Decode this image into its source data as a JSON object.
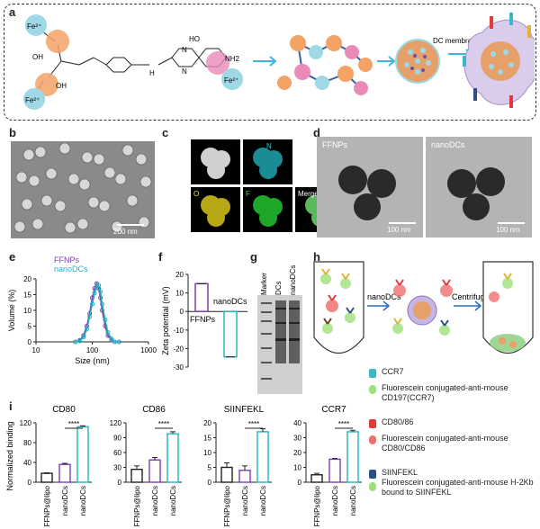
{
  "panels": {
    "a": {
      "label": "a",
      "fe_label": "Fe²⁺",
      "oh": "OH",
      "nh": "H",
      "nh2": "NH2",
      "ho": "HO",
      "n": "N",
      "coating_label": "DC membrane coating"
    },
    "b": {
      "label": "b",
      "scale": "200 nm"
    },
    "c": {
      "label": "c",
      "channels": [
        "N",
        "O",
        "F",
        "Merge"
      ]
    },
    "d": {
      "label": "d",
      "titles": [
        "FFNPs",
        "nanoDCs"
      ],
      "scale": "100 nm"
    },
    "e": {
      "label": "e"
    },
    "f": {
      "label": "f"
    },
    "g": {
      "label": "g",
      "lanes": [
        "Marker",
        "DCs",
        "nanoDCs"
      ]
    },
    "h": {
      "label": "h",
      "step1": "nanoDCs",
      "step2": "Centrifuge",
      "legend": [
        {
          "title": "CCR7",
          "desc": "Fluorescein conjugated-anti-mouse CD197(CCR7)",
          "color": "#3bb8c4"
        },
        {
          "title": "CD80/86",
          "desc": "Fluorescein conjugated-anti-mouse CD80/CD86",
          "color": "#e03a3a"
        },
        {
          "title": "SIINFEKL",
          "desc": "Fluorescein conjugated-anti-mouse H-2Kb bound to SIINFEKL",
          "color": "#2c4f8a"
        }
      ]
    },
    "i": {
      "label": "i"
    }
  },
  "chart_data": [
    {
      "type": "line",
      "panel": "e",
      "xlabel": "Size (nm)",
      "ylabel": "Volume (%)",
      "xscale": "log",
      "xlim": [
        10,
        1000
      ],
      "ylim": [
        0,
        20
      ],
      "xticks": [
        "10",
        "100",
        "1000"
      ],
      "yticks": [
        "0",
        "5",
        "10",
        "15",
        "20"
      ],
      "series": [
        {
          "name": "FFNPs",
          "color": "#7b3fb0",
          "x": [
            50,
            60,
            70,
            80,
            90,
            100,
            110,
            120,
            130,
            140,
            150,
            170,
            190,
            220,
            250,
            300
          ],
          "y": [
            0,
            0.5,
            2,
            5,
            9,
            14,
            17,
            18.5,
            17,
            14,
            10,
            5,
            2,
            0.5,
            0,
            0
          ]
        },
        {
          "name": "nanoDCs",
          "color": "#1fb5c0",
          "x": [
            50,
            60,
            70,
            80,
            90,
            100,
            110,
            120,
            130,
            140,
            150,
            170,
            190,
            220,
            250,
            300
          ],
          "y": [
            0,
            0.3,
            1.5,
            4,
            8,
            12,
            15.5,
            17.5,
            18,
            16,
            12,
            7,
            3,
            1,
            0,
            0
          ]
        }
      ],
      "legend": "top"
    },
    {
      "type": "bar",
      "panel": "f",
      "ylabel": "Zeta potential (mV)",
      "ylim": [
        -30,
        20
      ],
      "yticks": [
        "-30",
        "-20",
        "-10",
        "0",
        "10",
        "20"
      ],
      "categories": [
        "FFNPs",
        "nanoDCs"
      ],
      "values": [
        15,
        -24.5
      ],
      "colors": [
        "#7b3fb0",
        "#1fb5c0"
      ]
    },
    {
      "type": "bar",
      "panel": "i-CD80",
      "title": "CD80",
      "ylabel": "Normalized binding",
      "ylim": [
        0,
        120
      ],
      "yticks": [
        "0",
        "40",
        "80",
        "120"
      ],
      "categories": [
        "FFNPs@lipo",
        "nanoDCs",
        "nanoDCs"
      ],
      "values": [
        18,
        36,
        112
      ],
      "errors": [
        1,
        2,
        2
      ],
      "colors": [
        "#222222",
        "#7b3fb0",
        "#1fb5c0"
      ],
      "annotation": "****"
    },
    {
      "type": "bar",
      "panel": "i-CD86",
      "title": "CD86",
      "ylim": [
        0,
        120
      ],
      "yticks": [
        "0",
        "30",
        "60",
        "90",
        "120"
      ],
      "categories": [
        "FFNPs@lipo",
        "nanoDCs",
        "nanoDCs"
      ],
      "values": [
        26,
        45,
        98
      ],
      "errors": [
        7,
        5,
        4
      ],
      "colors": [
        "#222222",
        "#7b3fb0",
        "#1fb5c0"
      ],
      "annotation": "****"
    },
    {
      "type": "bar",
      "panel": "i-SIINFEKL",
      "title": "SIINFEKL",
      "ylim": [
        0,
        20
      ],
      "yticks": [
        "0",
        "5",
        "10",
        "15",
        "20"
      ],
      "categories": [
        "FFNPs@lipo",
        "nanoDCs",
        "nanoDCs"
      ],
      "values": [
        5,
        4,
        17
      ],
      "errors": [
        1.5,
        1.5,
        1
      ],
      "colors": [
        "#222222",
        "#7b3fb0",
        "#1fb5c0"
      ],
      "annotation": "****"
    },
    {
      "type": "bar",
      "panel": "i-CCR7",
      "title": "CCR7",
      "ylim": [
        0,
        40
      ],
      "yticks": [
        "0",
        "10",
        "20",
        "30",
        "40"
      ],
      "categories": [
        "FFNPs@lipo",
        "nanoDCs",
        "nanoDCs"
      ],
      "values": [
        5,
        15.5,
        34
      ],
      "errors": [
        1,
        0.5,
        1
      ],
      "colors": [
        "#222222",
        "#7b3fb0",
        "#1fb5c0"
      ],
      "annotation": "****"
    }
  ]
}
